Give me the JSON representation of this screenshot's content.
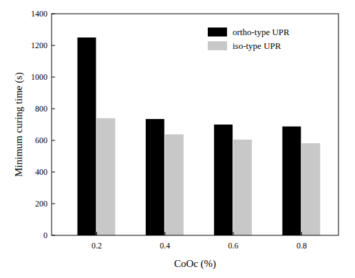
{
  "chart_data": {
    "type": "bar",
    "x_label": "CoOc (%)",
    "y_label": "Minimum curing time (s)",
    "categories": [
      "0.2",
      "0.4",
      "0.6",
      "0.8"
    ],
    "series": [
      {
        "name": "ortho-type UPR",
        "color": "#000000",
        "values": [
          1250,
          735,
          700,
          688
        ]
      },
      {
        "name": "iso-type UPR",
        "color": "#c8c8c8",
        "values": [
          740,
          638,
          605,
          582
        ]
      }
    ],
    "ylim": [
      0,
      1400
    ],
    "yticks": [
      0,
      200,
      400,
      600,
      800,
      1000,
      1200,
      1400
    ],
    "legend": "upper right",
    "grid": false
  }
}
